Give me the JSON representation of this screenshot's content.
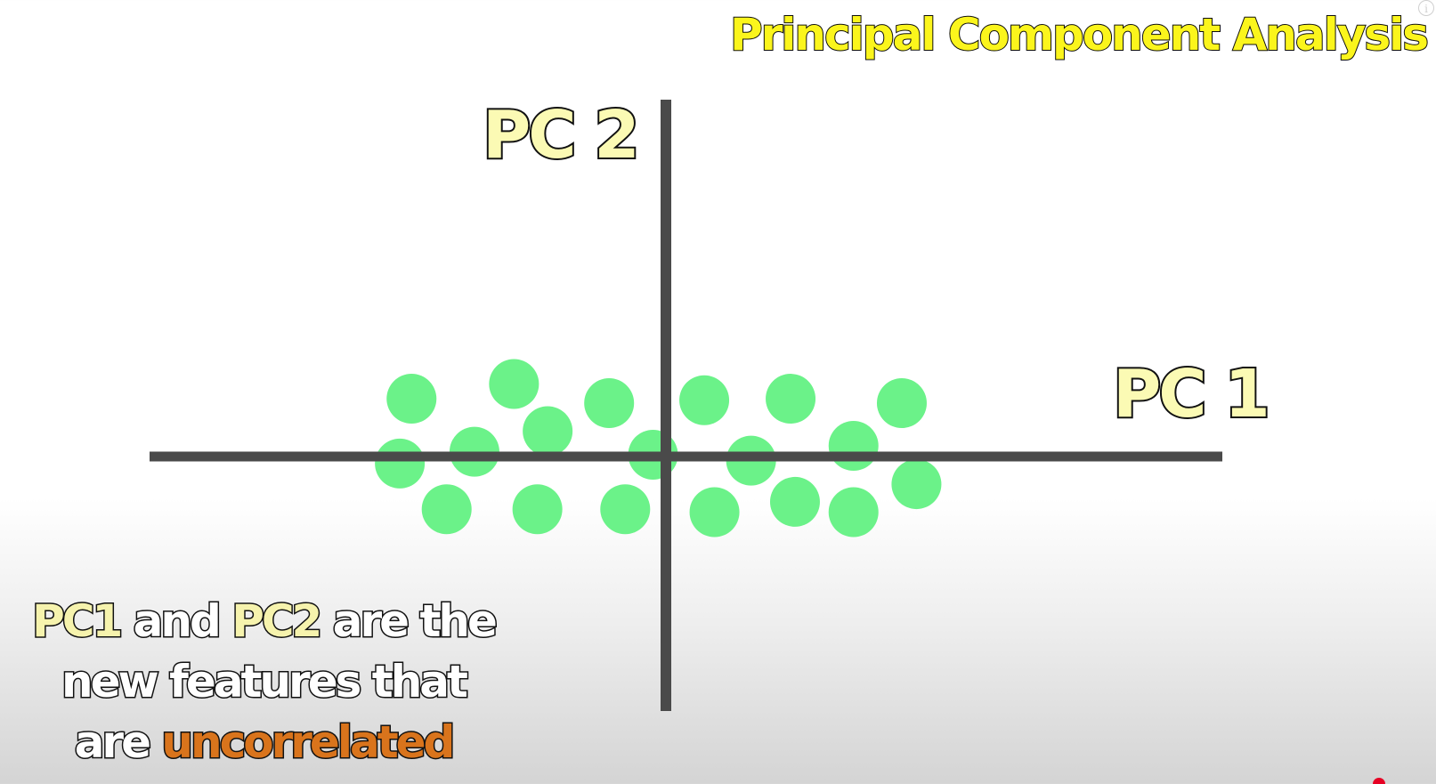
{
  "title": "Principal Component Analysis",
  "colors": {
    "title_fill": "#fbf51c",
    "axis_label_fill": "#fbfab4",
    "axis_line": "#4a4a4a",
    "point": "#6bf289",
    "caption_highlight": "#f6f3ad",
    "caption_emphasis": "#d9741c"
  },
  "chart_data": {
    "type": "scatter",
    "xlabel": "PC 1",
    "ylabel": "PC 2",
    "grid": false,
    "x_axis_range": [
      -3.57,
      3.76
    ],
    "y_axis_range": [
      -1.73,
      2.42
    ],
    "series": [
      {
        "points": [
          {
            "x": -1.78,
            "y": 0.39
          },
          {
            "x": -1.08,
            "y": 0.49
          },
          {
            "x": -0.43,
            "y": 0.36
          },
          {
            "x": 0.22,
            "y": 0.38
          },
          {
            "x": 0.81,
            "y": 0.39
          },
          {
            "x": 1.57,
            "y": 0.36
          },
          {
            "x": -0.85,
            "y": 0.17
          },
          {
            "x": 1.24,
            "y": 0.07
          },
          {
            "x": -1.35,
            "y": 0.03
          },
          {
            "x": -1.86,
            "y": -0.05
          },
          {
            "x": -0.13,
            "y": 0.01
          },
          {
            "x": 0.54,
            "y": -0.03
          },
          {
            "x": -1.54,
            "y": -0.36
          },
          {
            "x": -0.92,
            "y": -0.36
          },
          {
            "x": -0.32,
            "y": -0.36
          },
          {
            "x": 0.29,
            "y": -0.38
          },
          {
            "x": 0.84,
            "y": -0.31
          },
          {
            "x": 1.24,
            "y": -0.38
          },
          {
            "x": 1.67,
            "y": -0.19
          }
        ]
      }
    ]
  },
  "caption": {
    "line1_part1": "PC1",
    "line1_part2": " and ",
    "line1_part3": "PC2",
    "line1_part4": " are the",
    "line2": "new features that",
    "line3_part1": "are ",
    "line3_part2": "uncorrelated"
  },
  "icons": {
    "info": "i"
  }
}
